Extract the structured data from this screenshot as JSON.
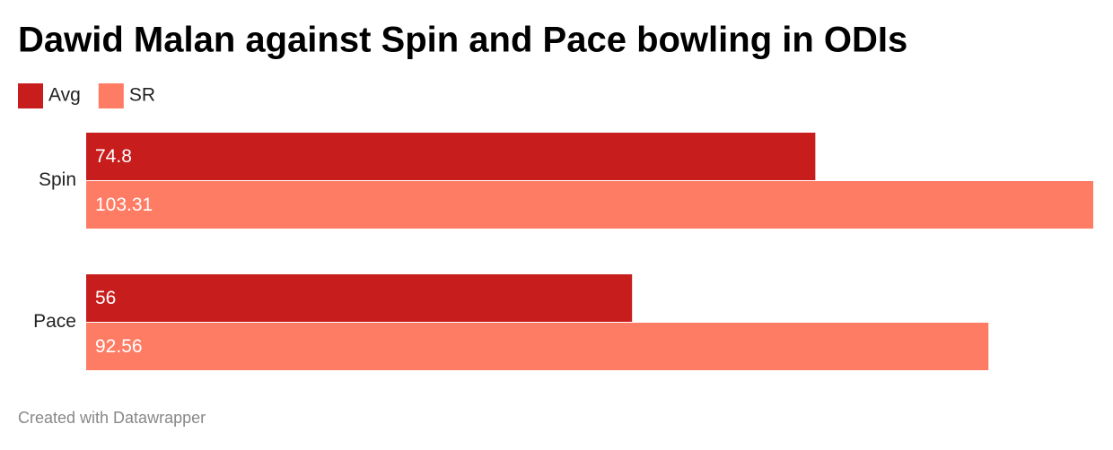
{
  "chart_data": {
    "type": "bar",
    "orientation": "horizontal",
    "title": "Dawid Malan against Spin and Pace bowling in ODIs",
    "categories": [
      "Spin",
      "Pace"
    ],
    "series": [
      {
        "name": "Avg",
        "color": "#c71e1d",
        "values": [
          74.8,
          56
        ]
      },
      {
        "name": "SR",
        "color": "#ff7c64",
        "values": [
          103.31,
          92.56
        ]
      }
    ],
    "legend": "top-left",
    "value_labels_inside": true,
    "footer": "Created with Datawrapper"
  }
}
